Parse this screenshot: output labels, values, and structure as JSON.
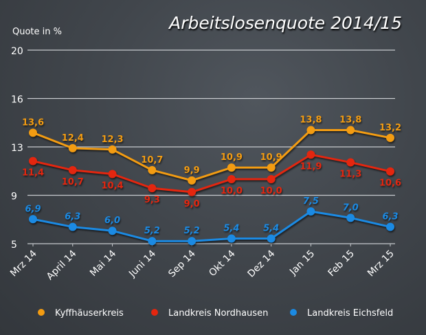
{
  "chart_data": {
    "type": "line",
    "title": "Arbeitslosenquote 2014/15",
    "ylabel": "Quote in %",
    "xlabel": "",
    "ylim": [
      5,
      20
    ],
    "yticks": [
      "5",
      "9",
      "13",
      "16",
      "20"
    ],
    "grid": true,
    "legend_placement": "bottom",
    "categories": [
      "Mrz 14",
      "April 14",
      "Mai 14",
      "Juni 14",
      "Sep 14",
      "Okt 14",
      "Dez 14",
      "Jan 15",
      "Feb 15",
      "Mrz 15"
    ],
    "series": [
      {
        "name": "Kyffhäuserkreis",
        "color": "#f39c12",
        "values": [
          13.6,
          12.4,
          12.3,
          10.7,
          9.9,
          10.9,
          10.9,
          13.8,
          13.8,
          13.2
        ],
        "labels": [
          "13,6",
          "12,4",
          "12,3",
          "10,7",
          "9,9",
          "10,9",
          "10,9",
          "13,8",
          "13,8",
          "13,2"
        ]
      },
      {
        "name": "Landkreis Nordhausen",
        "color": "#e4260f",
        "values": [
          11.4,
          10.7,
          10.4,
          9.3,
          9.0,
          10.0,
          10.0,
          11.9,
          11.3,
          10.6
        ],
        "labels": [
          "11,4",
          "10,7",
          "10,4",
          "9,3",
          "9,0",
          "10,0",
          "10,0",
          "11,9",
          "11,3",
          "10,6"
        ]
      },
      {
        "name": "Landkreis Eichsfeld",
        "color": "#1b8ae3",
        "values": [
          6.9,
          6.3,
          6.0,
          5.2,
          5.2,
          5.4,
          5.4,
          7.5,
          7.0,
          6.3
        ],
        "labels": [
          "6,9",
          "6,3",
          "6,0",
          "5,2",
          "5,2",
          "5,4",
          "5,4",
          "7,5",
          "7,0",
          "6,3"
        ]
      }
    ]
  }
}
